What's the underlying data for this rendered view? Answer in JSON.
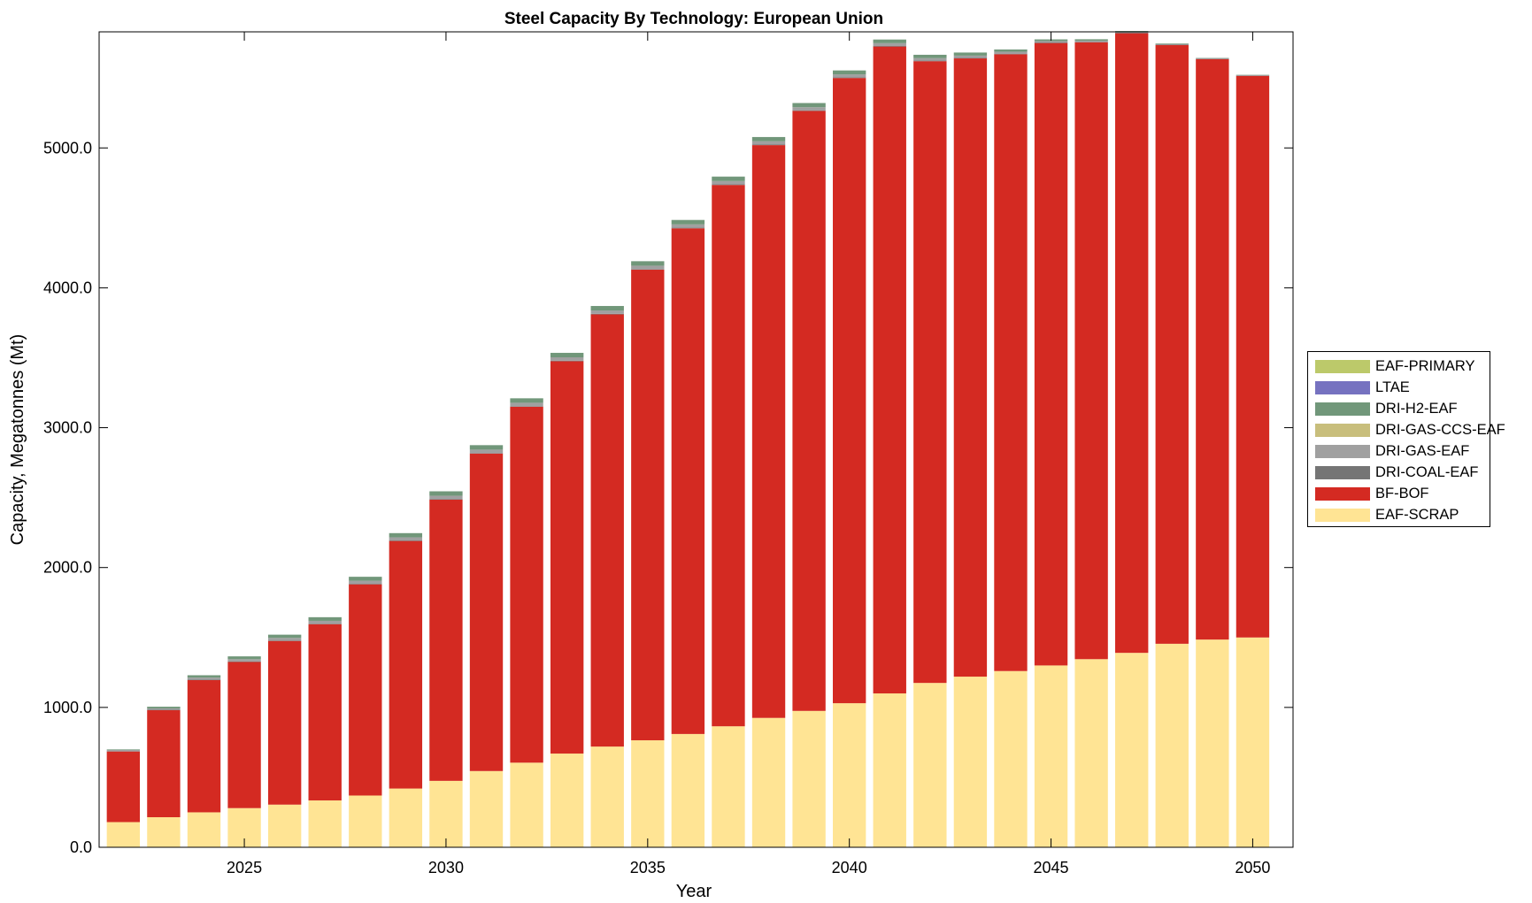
{
  "chart_data": {
    "type": "bar",
    "stacked": true,
    "title": "Steel Capacity By Technology: European Union",
    "xlabel": "Year",
    "ylabel": "Capacity, Megatonnes (Mt)",
    "ylim": [
      0,
      5830
    ],
    "xlim": [
      2021.4,
      2051.0
    ],
    "yticks": [
      0,
      1000,
      2000,
      3000,
      4000,
      5000
    ],
    "ytick_labels": [
      "0.0",
      "1000.0",
      "2000.0",
      "3000.0",
      "4000.0",
      "5000.0"
    ],
    "xticks": [
      2025,
      2030,
      2035,
      2040,
      2045,
      2050
    ],
    "xtick_labels": [
      "2025",
      "2030",
      "2035",
      "2040",
      "2045",
      "2050"
    ],
    "legend_position": "outside-right",
    "categories": [
      2022,
      2023,
      2024,
      2025,
      2026,
      2027,
      2028,
      2029,
      2030,
      2031,
      2032,
      2033,
      2034,
      2035,
      2036,
      2037,
      2038,
      2039,
      2040,
      2041,
      2042,
      2043,
      2044,
      2045,
      2046,
      2047,
      2048,
      2049,
      2050
    ],
    "series": [
      {
        "name": "EAF-SCRAP",
        "color": "#FFE494",
        "values": [
          180,
          215,
          250,
          280,
          305,
          335,
          370,
          420,
          475,
          545,
          605,
          670,
          720,
          765,
          810,
          865,
          925,
          975,
          1030,
          1100,
          1175,
          1220,
          1260,
          1300,
          1345,
          1390,
          1455,
          1485,
          1500
        ]
      },
      {
        "name": "BF-BOF",
        "color": "#D42A22",
        "values": [
          505,
          765,
          945,
          1045,
          1170,
          1260,
          1510,
          1770,
          2010,
          2270,
          2545,
          2805,
          3090,
          3365,
          3615,
          3870,
          4095,
          4290,
          4470,
          4625,
          4445,
          4420,
          4410,
          4450,
          4410,
          4430,
          4280,
          4150,
          4015
        ]
      },
      {
        "name": "DRI-COAL-EAF",
        "color": "#757575",
        "values": [
          3,
          3,
          4,
          4,
          4,
          4,
          4,
          4,
          4,
          4,
          4,
          4,
          4,
          4,
          4,
          4,
          4,
          4,
          4,
          4,
          4,
          4,
          4,
          4,
          4,
          4,
          4,
          4,
          4
        ]
      },
      {
        "name": "DRI-GAS-EAF",
        "color": "#A0A0A0",
        "values": [
          8,
          10,
          14,
          16,
          18,
          20,
          22,
          22,
          24,
          24,
          24,
          24,
          24,
          24,
          24,
          24,
          24,
          22,
          22,
          20,
          18,
          16,
          14,
          10,
          8,
          6,
          4,
          3,
          2
        ]
      },
      {
        "name": "DRI-GAS-CCS-EAF",
        "color": "#C8BE7C",
        "values": [
          0,
          0,
          0,
          0,
          0,
          0,
          0,
          0,
          0,
          0,
          0,
          0,
          0,
          0,
          0,
          0,
          0,
          0,
          0,
          0,
          0,
          0,
          0,
          0,
          0,
          0,
          0,
          0,
          0
        ]
      },
      {
        "name": "DRI-H2-EAF",
        "color": "#71977A",
        "values": [
          4,
          12,
          17,
          20,
          23,
          26,
          28,
          30,
          32,
          32,
          32,
          32,
          32,
          32,
          32,
          32,
          30,
          30,
          28,
          26,
          24,
          22,
          16,
          12,
          10,
          6,
          4,
          2,
          2
        ]
      },
      {
        "name": "LTAE",
        "color": "#7672C0",
        "values": [
          0,
          0,
          0,
          0,
          0,
          0,
          0,
          0,
          0,
          0,
          0,
          0,
          0,
          0,
          0,
          0,
          0,
          0,
          0,
          0,
          0,
          0,
          0,
          0,
          0,
          0,
          0,
          0,
          0
        ]
      },
      {
        "name": "EAF-PRIMARY",
        "color": "#BCC96A",
        "values": [
          0,
          0,
          0,
          0,
          0,
          0,
          0,
          0,
          0,
          0,
          0,
          0,
          0,
          0,
          0,
          0,
          0,
          0,
          0,
          0,
          0,
          0,
          0,
          0,
          0,
          0,
          0,
          0,
          0
        ]
      }
    ]
  }
}
